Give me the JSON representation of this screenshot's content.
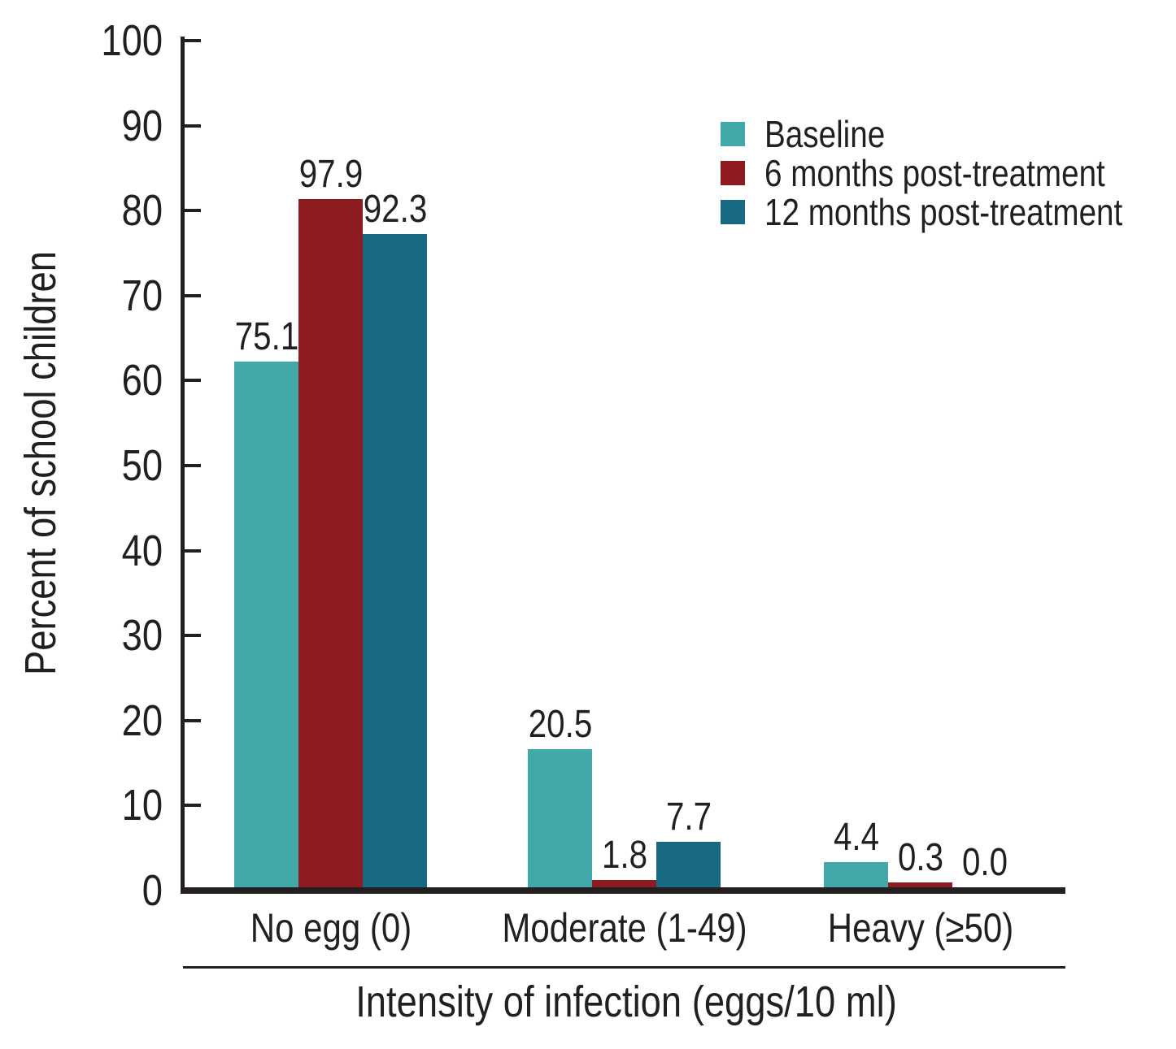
{
  "background": "#ffffff",
  "text_color": "#231f20",
  "chart_data": {
    "type": "bar",
    "title": "",
    "ylabel": "Percent of school children",
    "xlabel": "Intensity of infection (eggs/10 ml)",
    "categories": [
      "No egg (0)",
      "Moderate (1-49)",
      "Heavy (≥50)"
    ],
    "series": [
      {
        "name": "Baseline",
        "color": "#42a8aa",
        "values": [
          75.1,
          20.5,
          4.4
        ]
      },
      {
        "name": "6 months post-treatment",
        "color": "#8e1b1f",
        "values": [
          97.9,
          1.8,
          0.3
        ]
      },
      {
        "name": "12 months post-treatment",
        "color": "#186a82",
        "values": [
          92.3,
          7.7,
          0.0
        ]
      }
    ],
    "ylim": [
      0,
      100
    ],
    "yticks": [
      0,
      10,
      20,
      30,
      40,
      50,
      60,
      70,
      80,
      90,
      100
    ],
    "grid": false,
    "legend_position": "top-right",
    "value_labels_shown": true,
    "layout_hints": {
      "drawn_bar_percent": [
        [
          61.9,
          16.3,
          3.0
        ],
        [
          81.0,
          0.9,
          0.6
        ],
        [
          76.9,
          5.4,
          0.0
        ]
      ]
    }
  }
}
